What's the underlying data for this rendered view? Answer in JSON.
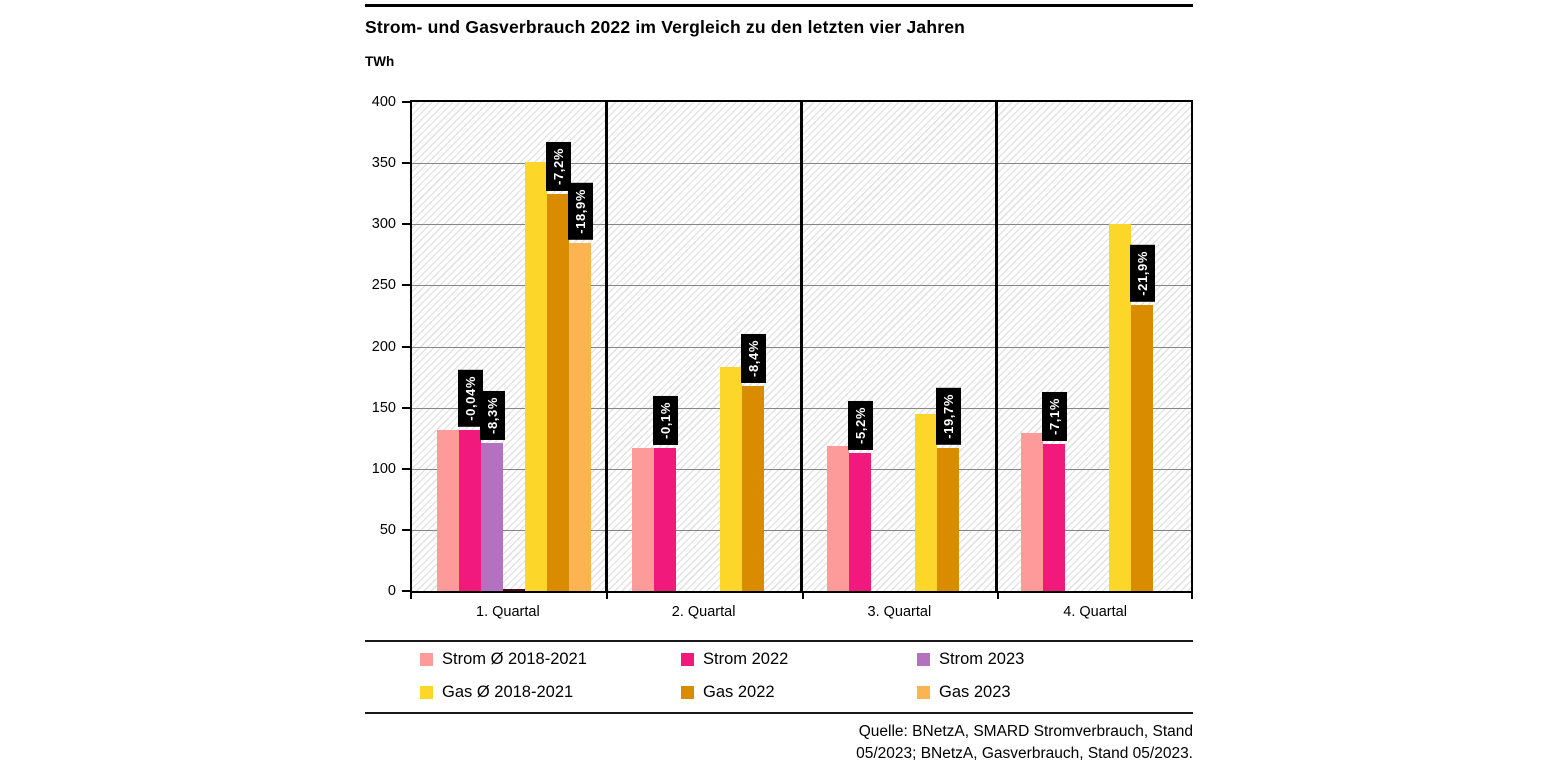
{
  "header": {
    "title": "Strom- und Gasverbrauch 2022 im Vergleich zu den letzten vier Jahren",
    "unit_label": "TWh"
  },
  "chart_data": {
    "type": "bar",
    "title": "Strom- und Gasverbrauch 2022 im Vergleich zu den letzten vier Jahren",
    "ylabel": "TWh",
    "ylim": [
      0,
      400
    ],
    "ytick_step": 50,
    "yticks": [
      400,
      350,
      300,
      250,
      200,
      150,
      100,
      50,
      0
    ],
    "categories": [
      "1. Quartal",
      "2. Quartal",
      "3. Quartal",
      "4. Quartal"
    ],
    "grid": "horizontal",
    "legend_position": "bottom",
    "series": [
      {
        "name": "Strom Ø 2018-2021",
        "color": "#FC9B99",
        "in_legend": true,
        "values": [
          132,
          117,
          119,
          129
        ],
        "labels": [
          null,
          null,
          null,
          null
        ]
      },
      {
        "name": "Strom 2022",
        "color": "#F2197C",
        "in_legend": true,
        "values": [
          132,
          117,
          113,
          120
        ],
        "labels": [
          "-0,04%",
          "-0,1%",
          "-5,2%",
          "-7,1%"
        ]
      },
      {
        "name": "Strom 2023",
        "color": "#B471BF",
        "in_legend": true,
        "values": [
          121,
          null,
          null,
          null
        ],
        "labels": [
          "-8,3%",
          null,
          null,
          null
        ]
      },
      {
        "name": "unlabeled-dark-sliver",
        "color": "#460D19",
        "in_legend": false,
        "values": [
          1.5,
          null,
          null,
          null
        ],
        "labels": [
          null,
          null,
          null,
          null
        ]
      },
      {
        "name": "Gas Ø 2018-2021",
        "color": "#FDD62A",
        "in_legend": true,
        "values": [
          351,
          183,
          145,
          300
        ],
        "labels": [
          null,
          null,
          null,
          null
        ]
      },
      {
        "name": "Gas 2022",
        "color": "#D98C00",
        "in_legend": true,
        "values": [
          325,
          168,
          117,
          234
        ],
        "labels": [
          "-7,2%",
          "-8,4%",
          "-19,7%",
          "-21,9%"
        ]
      },
      {
        "name": "Gas 2023",
        "color": "#FBB451",
        "in_legend": true,
        "values": [
          285,
          null,
          null,
          null
        ],
        "labels": [
          "-18,9%",
          null,
          null,
          null
        ]
      }
    ],
    "value_label_style": {
      "background": "#000000",
      "color": "#FFFFFF",
      "rotation": "vertical"
    }
  },
  "legend": {
    "items": [
      {
        "label": "Strom Ø 2018-2021",
        "color": "#FC9B99"
      },
      {
        "label": "Strom 2022",
        "color": "#F2197C"
      },
      {
        "label": "Strom 2023",
        "color": "#B471BF"
      },
      {
        "label": "Gas Ø 2018-2021",
        "color": "#FDD62A"
      },
      {
        "label": "Gas 2022",
        "color": "#D98C00"
      },
      {
        "label": "Gas 2023",
        "color": "#FBB451"
      }
    ]
  },
  "footer": {
    "source_line1": "Quelle: BNetzA, SMARD Stromverbrauch, Stand",
    "source_line2": "05/2023; BNetzA, Gasverbrauch, Stand 05/2023."
  }
}
